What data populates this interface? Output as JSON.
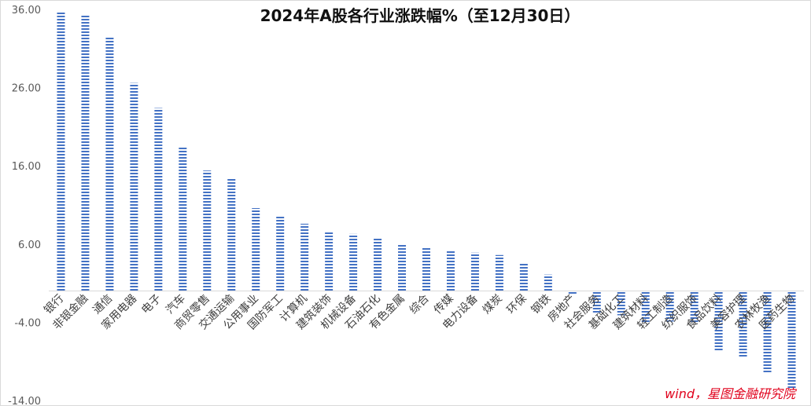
{
  "chart_data": {
    "type": "bar",
    "title": "2024年A股各行业涨跌幅%（至12月30日）",
    "xlabel": "",
    "ylabel": "",
    "ylim": [
      -14,
      36
    ],
    "yticks": [
      "36.00",
      "26.00",
      "16.00",
      "6.00",
      "-4.00",
      "-14.00"
    ],
    "grid": false,
    "legend": "none",
    "bar_color": "#4472c4",
    "categories": [
      "银行",
      "非银金融",
      "通信",
      "家用电器",
      "电子",
      "汽车",
      "商贸零售",
      "交通运输",
      "公用事业",
      "国防军工",
      "计算机",
      "建筑装饰",
      "机械设备",
      "石油石化",
      "有色金属",
      "综合",
      "传媒",
      "电力设备",
      "煤炭",
      "环保",
      "钢铁",
      "房地产",
      "社会服务",
      "基础化工",
      "建筑材料",
      "轻工制造",
      "纺织服饰",
      "食品饮料",
      "美容护理",
      "农林牧渔",
      "医药生物"
    ],
    "values": [
      35.8,
      35.3,
      32.4,
      26.6,
      23.4,
      18.4,
      15.4,
      14.4,
      10.6,
      9.6,
      8.6,
      7.6,
      7.3,
      6.8,
      6.0,
      5.6,
      5.2,
      4.9,
      4.6,
      3.6,
      2.1,
      -0.4,
      -2.9,
      -3.1,
      -4.1,
      -3.9,
      -4.0,
      -7.7,
      -8.5,
      -10.4,
      -12.4
    ]
  },
  "source_text": "wind，星图金融研究院"
}
